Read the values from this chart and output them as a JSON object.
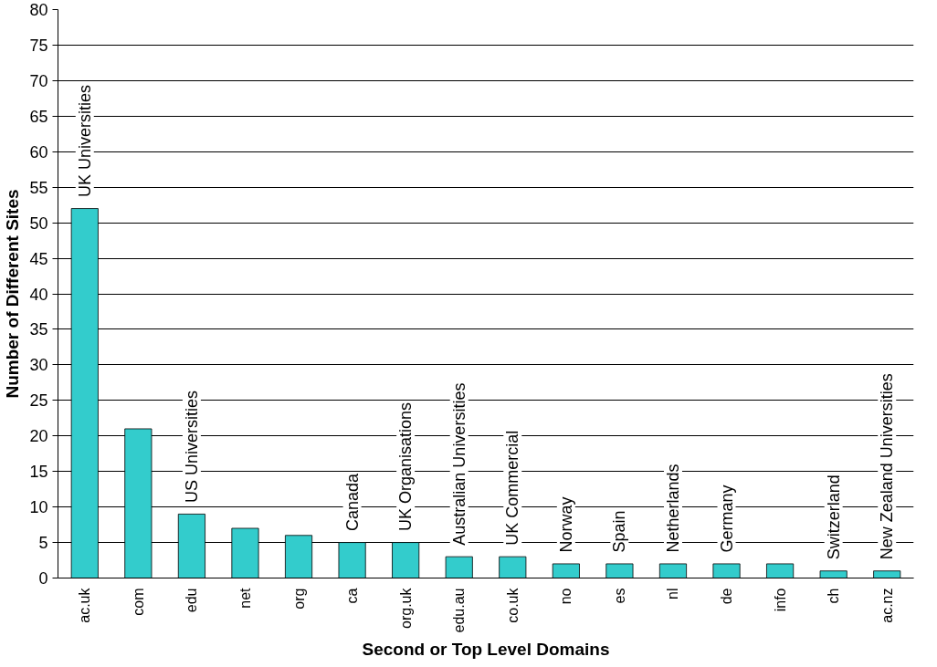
{
  "chart_data": {
    "type": "bar",
    "xlabel": "Second or Top Level Domains",
    "ylabel": "Number of Different Sites",
    "categories": [
      "ac.uk",
      "com",
      "edu",
      "net",
      "org",
      "ca",
      "org.uk",
      "edu.au",
      "co.uk",
      "no",
      "es",
      "nl",
      "de",
      "info",
      "ch",
      "ac.nz"
    ],
    "values": [
      52,
      21,
      9,
      7,
      6,
      5,
      5,
      3,
      3,
      2,
      2,
      2,
      2,
      2,
      1,
      1
    ],
    "color": "#33cccc",
    "ylim": [
      0,
      80
    ],
    "yticks": [
      0,
      5,
      10,
      15,
      20,
      25,
      30,
      35,
      40,
      45,
      50,
      55,
      60,
      65,
      70,
      75,
      80
    ],
    "grid": "y",
    "value_labels": [
      "UK Universities",
      null,
      "US Universities",
      null,
      null,
      "Canada",
      "UK Organisations",
      "Australian Universities",
      "UK Commercial",
      "Norway",
      "Spain",
      "Netherlands",
      "Germany",
      null,
      "Switzerland",
      "New Zealand Universities"
    ]
  }
}
